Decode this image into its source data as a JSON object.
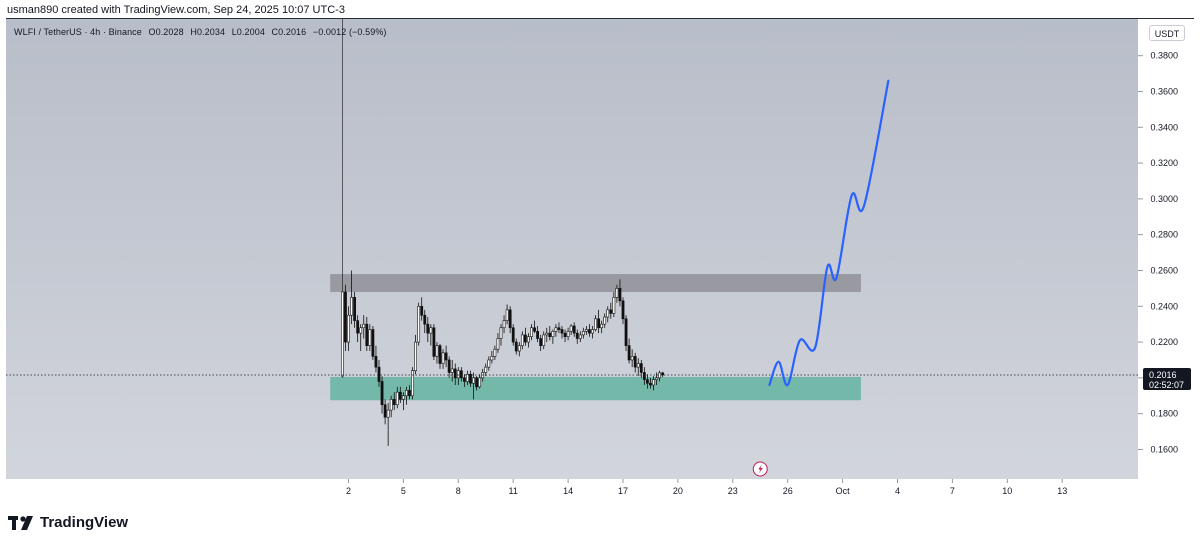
{
  "caption": "usman890 created with TradingView.com, Sep 24, 2025 10:07 UTC-3",
  "legend": {
    "symbol": "WLFI / TetherUS · 4h · Binance",
    "open": "O0.2028",
    "high": "H0.2034",
    "low": "L0.2004",
    "close": "C0.2016",
    "change": "−0.0012 (−0.59%)"
  },
  "currency_label": "USDT",
  "brand": {
    "name": "TradingView",
    "logo_icon": "tradingview-logo-icon"
  },
  "colors": {
    "up": "#111111",
    "down": "#111111",
    "resistance_zone": "#8f9198",
    "support_zone": "#6fb6a6",
    "projection": "#2962ff",
    "price_tag": "#131722"
  },
  "chart_data": {
    "type": "candlestick",
    "title": "",
    "x_axis": {
      "ticks": [
        "2",
        "5",
        "8",
        "11",
        "14",
        "17",
        "20",
        "23",
        "26",
        "Oct",
        "4",
        "7",
        "10",
        "13"
      ],
      "range_days": [
        "Sep 1 2025",
        "Oct 14 2025"
      ]
    },
    "y_axis": {
      "ticks": [
        "0.1600",
        "0.1800",
        "0.2000",
        "0.2200",
        "0.2400",
        "0.2600",
        "0.2800",
        "0.3000",
        "0.3200",
        "0.3400",
        "0.3600",
        "0.3800"
      ],
      "range": [
        0.1435,
        0.4005
      ],
      "position": "right"
    },
    "last_price": {
      "value": 0.2016,
      "label": "0.2016",
      "countdown": "02:52:07"
    },
    "zones": [
      {
        "name": "resistance",
        "from": "Sep 1 2025",
        "to": "Sep 30 2025",
        "low": 0.248,
        "high": 0.258
      },
      {
        "name": "support",
        "from": "Sep 1 2025",
        "to": "Sep 30 2025",
        "low": 0.1875,
        "high": 0.2005
      }
    ],
    "series": [
      {
        "name": "price",
        "kind": "ohlc_4h",
        "start": "Sep 1 2025 16:00",
        "candles": [
          [
            0.201,
            0.255,
            0.2,
            0.248
          ],
          [
            0.248,
            0.252,
            0.215,
            0.22
          ],
          [
            0.22,
            0.24,
            0.215,
            0.235
          ],
          [
            0.235,
            0.26,
            0.23,
            0.245
          ],
          [
            0.245,
            0.248,
            0.228,
            0.232
          ],
          [
            0.232,
            0.235,
            0.22,
            0.225
          ],
          [
            0.225,
            0.23,
            0.215,
            0.228
          ],
          [
            0.228,
            0.235,
            0.222,
            0.23
          ],
          [
            0.23,
            0.234,
            0.215,
            0.218
          ],
          [
            0.218,
            0.23,
            0.215,
            0.227
          ],
          [
            0.227,
            0.229,
            0.21,
            0.212
          ],
          [
            0.212,
            0.218,
            0.203,
            0.206
          ],
          [
            0.206,
            0.21,
            0.195,
            0.198
          ],
          [
            0.198,
            0.201,
            0.18,
            0.185
          ],
          [
            0.185,
            0.188,
            0.174,
            0.178
          ],
          [
            0.178,
            0.186,
            0.162,
            0.182
          ],
          [
            0.182,
            0.19,
            0.178,
            0.188
          ],
          [
            0.188,
            0.192,
            0.182,
            0.185
          ],
          [
            0.185,
            0.195,
            0.183,
            0.192
          ],
          [
            0.192,
            0.195,
            0.186,
            0.188
          ],
          [
            0.188,
            0.192,
            0.182,
            0.19
          ],
          [
            0.19,
            0.195,
            0.185,
            0.193
          ],
          [
            0.193,
            0.196,
            0.188,
            0.19
          ],
          [
            0.19,
            0.206,
            0.188,
            0.204
          ],
          [
            0.204,
            0.224,
            0.202,
            0.22
          ],
          [
            0.22,
            0.242,
            0.218,
            0.24
          ],
          [
            0.24,
            0.245,
            0.232,
            0.235
          ],
          [
            0.235,
            0.238,
            0.225,
            0.23
          ],
          [
            0.23,
            0.234,
            0.22,
            0.225
          ],
          [
            0.225,
            0.23,
            0.218,
            0.228
          ],
          [
            0.228,
            0.23,
            0.21,
            0.212
          ],
          [
            0.212,
            0.22,
            0.208,
            0.218
          ],
          [
            0.218,
            0.219,
            0.205,
            0.208
          ],
          [
            0.208,
            0.216,
            0.205,
            0.214
          ],
          [
            0.214,
            0.218,
            0.206,
            0.21
          ],
          [
            0.21,
            0.212,
            0.2,
            0.203
          ],
          [
            0.203,
            0.21,
            0.198,
            0.205
          ],
          [
            0.205,
            0.208,
            0.196,
            0.2
          ],
          [
            0.2,
            0.206,
            0.196,
            0.204
          ],
          [
            0.204,
            0.206,
            0.198,
            0.2
          ],
          [
            0.2,
            0.202,
            0.195,
            0.198
          ],
          [
            0.198,
            0.204,
            0.196,
            0.202
          ],
          [
            0.202,
            0.204,
            0.195,
            0.197
          ],
          [
            0.197,
            0.203,
            0.188,
            0.2
          ],
          [
            0.2,
            0.201,
            0.193,
            0.195
          ],
          [
            0.195,
            0.202,
            0.194,
            0.2
          ],
          [
            0.2,
            0.205,
            0.198,
            0.203
          ],
          [
            0.203,
            0.208,
            0.201,
            0.206
          ],
          [
            0.206,
            0.212,
            0.204,
            0.21
          ],
          [
            0.21,
            0.215,
            0.208,
            0.212
          ],
          [
            0.212,
            0.218,
            0.21,
            0.216
          ],
          [
            0.216,
            0.225,
            0.214,
            0.222
          ],
          [
            0.222,
            0.23,
            0.218,
            0.228
          ],
          [
            0.228,
            0.235,
            0.225,
            0.232
          ],
          [
            0.232,
            0.241,
            0.23,
            0.238
          ],
          [
            0.238,
            0.24,
            0.225,
            0.228
          ],
          [
            0.228,
            0.23,
            0.218,
            0.22
          ],
          [
            0.22,
            0.222,
            0.213,
            0.215
          ],
          [
            0.215,
            0.22,
            0.212,
            0.218
          ],
          [
            0.218,
            0.226,
            0.216,
            0.224
          ],
          [
            0.224,
            0.228,
            0.218,
            0.22
          ],
          [
            0.22,
            0.225,
            0.217,
            0.223
          ],
          [
            0.223,
            0.23,
            0.221,
            0.228
          ],
          [
            0.228,
            0.232,
            0.225,
            0.226
          ],
          [
            0.226,
            0.229,
            0.22,
            0.222
          ],
          [
            0.222,
            0.224,
            0.215,
            0.218
          ],
          [
            0.218,
            0.226,
            0.216,
            0.224
          ],
          [
            0.224,
            0.228,
            0.22,
            0.225
          ],
          [
            0.225,
            0.229,
            0.221,
            0.223
          ],
          [
            0.223,
            0.227,
            0.219,
            0.226
          ],
          [
            0.226,
            0.23,
            0.223,
            0.228
          ],
          [
            0.228,
            0.231,
            0.225,
            0.227
          ],
          [
            0.227,
            0.229,
            0.222,
            0.225
          ],
          [
            0.225,
            0.227,
            0.22,
            0.223
          ],
          [
            0.223,
            0.228,
            0.221,
            0.226
          ],
          [
            0.226,
            0.23,
            0.224,
            0.229
          ],
          [
            0.229,
            0.231,
            0.223,
            0.225
          ],
          [
            0.225,
            0.227,
            0.219,
            0.222
          ],
          [
            0.222,
            0.226,
            0.22,
            0.224
          ],
          [
            0.224,
            0.228,
            0.222,
            0.226
          ],
          [
            0.226,
            0.229,
            0.224,
            0.227
          ],
          [
            0.227,
            0.23,
            0.223,
            0.225
          ],
          [
            0.225,
            0.229,
            0.222,
            0.227
          ],
          [
            0.227,
            0.235,
            0.226,
            0.233
          ],
          [
            0.233,
            0.238,
            0.225,
            0.228
          ],
          [
            0.228,
            0.232,
            0.225,
            0.23
          ],
          [
            0.23,
            0.236,
            0.228,
            0.234
          ],
          [
            0.234,
            0.24,
            0.231,
            0.238
          ],
          [
            0.238,
            0.242,
            0.233,
            0.236
          ],
          [
            0.236,
            0.248,
            0.234,
            0.245
          ],
          [
            0.245,
            0.252,
            0.242,
            0.25
          ],
          [
            0.25,
            0.255,
            0.24,
            0.243
          ],
          [
            0.243,
            0.245,
            0.23,
            0.233
          ],
          [
            0.233,
            0.235,
            0.215,
            0.218
          ],
          [
            0.218,
            0.222,
            0.208,
            0.21
          ],
          [
            0.21,
            0.216,
            0.206,
            0.212
          ],
          [
            0.212,
            0.214,
            0.203,
            0.206
          ],
          [
            0.206,
            0.211,
            0.201,
            0.208
          ],
          [
            0.208,
            0.21,
            0.2,
            0.203
          ],
          [
            0.203,
            0.206,
            0.196,
            0.199
          ],
          [
            0.199,
            0.202,
            0.194,
            0.197
          ],
          [
            0.197,
            0.2,
            0.194,
            0.196
          ],
          [
            0.196,
            0.201,
            0.193,
            0.199
          ],
          [
            0.199,
            0.203,
            0.196,
            0.2
          ],
          [
            0.2,
            0.204,
            0.198,
            0.2028
          ],
          [
            0.2028,
            0.2034,
            0.2004,
            0.2016
          ]
        ]
      },
      {
        "name": "projection",
        "kind": "line",
        "points": [
          [
            "Sep 25 2025 00:00",
            0.196
          ],
          [
            "Sep 25 2025 12:00",
            0.209
          ],
          [
            "Sep 26 2025 00:00",
            0.196
          ],
          [
            "Sep 26 2025 16:00",
            0.221
          ],
          [
            "Sep 27 2025 12:00",
            0.217
          ],
          [
            "Sep 28 2025 04:00",
            0.262
          ],
          [
            "Sep 28 2025 16:00",
            0.256
          ],
          [
            "Sep 29 2025 12:00",
            0.302
          ],
          [
            "Sep 30 2025 04:00",
            0.296
          ],
          [
            "Oct 1 2025 12:00",
            0.366
          ]
        ]
      }
    ],
    "annotation_icon": "flash-event-icon",
    "grid": false,
    "legend": "top-left"
  }
}
